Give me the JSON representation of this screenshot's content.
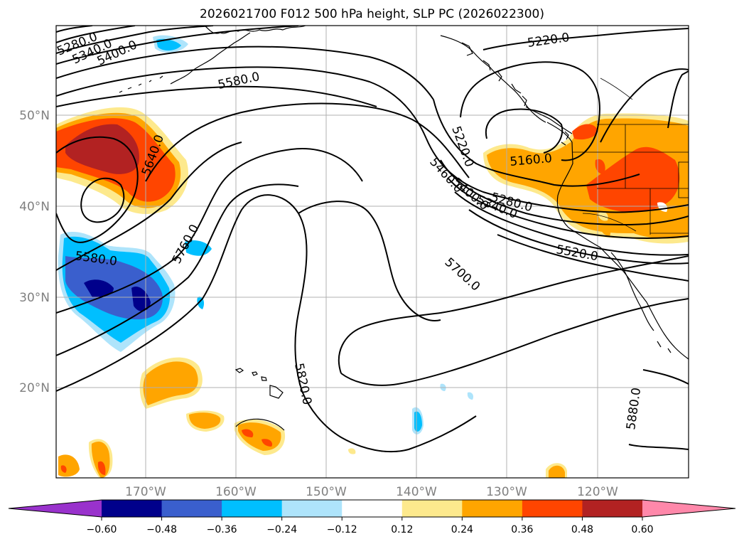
{
  "title": "2026021700 F012 500 hPa height, SLP PC (2026022300)",
  "map": {
    "lon_labels": [
      "170°W",
      "160°W",
      "150°W",
      "140°W",
      "130°W",
      "120°W"
    ],
    "lat_labels": [
      "50°N",
      "40°N",
      "30°N",
      "20°N"
    ],
    "contour_labels": [
      "5280.0",
      "5340.0",
      "5400.0",
      "5460.0",
      "5580.0",
      "5640.0",
      "5580.0",
      "5760.0",
      "5820.0",
      "5700.0",
      "5460.0",
      "5400.0",
      "5280.0",
      "5340.0",
      "5520.0",
      "5220.0",
      "5160.0",
      "5220.0",
      "5880.0"
    ]
  },
  "colorbar": {
    "ticks": [
      "−0.60",
      "−0.48",
      "−0.36",
      "−0.24",
      "−0.12",
      "0.12",
      "0.24",
      "0.36",
      "0.48",
      "0.60"
    ],
    "colors": [
      "#9932cc",
      "#00008b",
      "#3a5fcd",
      "#00bfff",
      "#aee4fb",
      "#ffffff",
      "#fde98d",
      "#ffa500",
      "#ff4500",
      "#b22222",
      "#ff88aa"
    ]
  }
}
